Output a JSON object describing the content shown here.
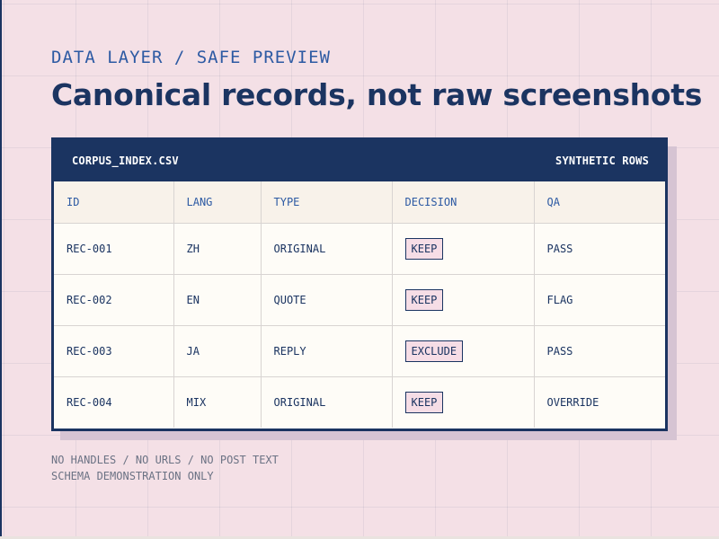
{
  "header": {
    "kicker": "DATA LAYER / SAFE PREVIEW",
    "title": "Canonical records, not raw screenshots"
  },
  "table": {
    "filename": "CORPUS_INDEX.CSV",
    "tag": "SYNTHETIC ROWS",
    "columns": [
      "ID",
      "LANG",
      "TYPE",
      "DECISION",
      "QA"
    ],
    "rows": [
      {
        "id": "REC-001",
        "lang": "ZH",
        "type": "ORIGINAL",
        "decision": "KEEP",
        "qa": "PASS"
      },
      {
        "id": "REC-002",
        "lang": "EN",
        "type": "QUOTE",
        "decision": "KEEP",
        "qa": "FLAG"
      },
      {
        "id": "REC-003",
        "lang": "JA",
        "type": "REPLY",
        "decision": "EXCLUDE",
        "qa": "PASS"
      },
      {
        "id": "REC-004",
        "lang": "MIX",
        "type": "ORIGINAL",
        "decision": "KEEP",
        "qa": "OVERRIDE"
      }
    ]
  },
  "footer": {
    "line1": "NO HANDLES / NO URLS / NO POST TEXT",
    "line2": "SCHEMA DEMONSTRATION ONLY"
  },
  "colors": {
    "background": "#f4e0e6",
    "navy": "#1b3461",
    "accent_blue": "#2d5aa3",
    "badge_fill": "#f6dde6",
    "table_body": "#fefcf7",
    "table_head": "#f8f2ea",
    "muted_text": "#6b7284"
  }
}
